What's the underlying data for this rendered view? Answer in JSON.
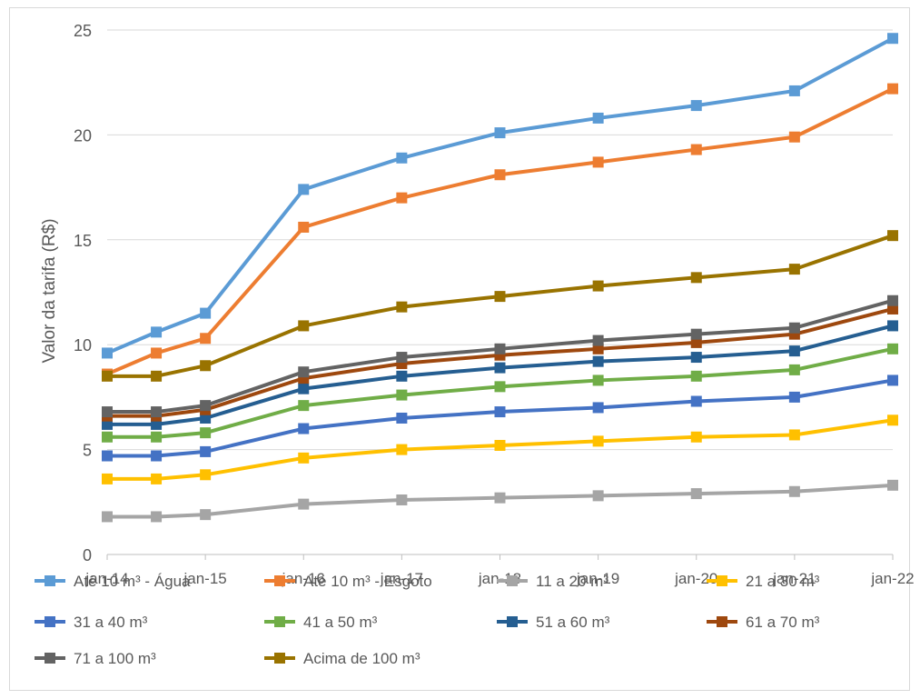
{
  "chart_data": {
    "type": "line",
    "title": "",
    "xlabel": "",
    "ylabel": "Valor da tarifa (R$)",
    "ylim": [
      0,
      25
    ],
    "yticks": [
      0,
      5,
      10,
      15,
      20,
      25
    ],
    "grid": "horizontal",
    "legend_position": "bottom",
    "x_positions": [
      0,
      0.5,
      1,
      2,
      3,
      4,
      5,
      6,
      7,
      8
    ],
    "x_tick_positions": [
      0,
      1,
      2,
      3,
      4,
      5,
      6,
      7,
      8
    ],
    "x_tick_labels": [
      "jan-14",
      "jan-15",
      "jan-16",
      "jan-17",
      "jan-18",
      "jan-19",
      "jan-20",
      "jan-21",
      "jan-22"
    ],
    "series": [
      {
        "name": "Até 10 m³ - Água",
        "color": "#5B9BD5",
        "values": [
          9.6,
          10.6,
          11.5,
          17.4,
          18.9,
          20.1,
          20.8,
          21.4,
          22.1,
          24.6
        ]
      },
      {
        "name": "Até 10 m³ - Esgoto",
        "color": "#ED7D31",
        "values": [
          8.6,
          9.6,
          10.3,
          15.6,
          17.0,
          18.1,
          18.7,
          19.3,
          19.9,
          22.2
        ]
      },
      {
        "name": "11 a 20 m³",
        "color": "#A5A5A5",
        "values": [
          1.8,
          1.8,
          1.9,
          2.4,
          2.6,
          2.7,
          2.8,
          2.9,
          3.0,
          3.3
        ]
      },
      {
        "name": "21 a 30 m³",
        "color": "#FFC000",
        "values": [
          3.6,
          3.6,
          3.8,
          4.6,
          5.0,
          5.2,
          5.4,
          5.6,
          5.7,
          6.4
        ]
      },
      {
        "name": "31 a 40 m³",
        "color": "#4472C4",
        "values": [
          4.7,
          4.7,
          4.9,
          6.0,
          6.5,
          6.8,
          7.0,
          7.3,
          7.5,
          8.3
        ]
      },
      {
        "name": "41 a 50 m³",
        "color": "#70AD47",
        "values": [
          5.6,
          5.6,
          5.8,
          7.1,
          7.6,
          8.0,
          8.3,
          8.5,
          8.8,
          9.8
        ]
      },
      {
        "name": "51 a 60 m³",
        "color": "#255E91",
        "values": [
          6.2,
          6.2,
          6.5,
          7.9,
          8.5,
          8.9,
          9.2,
          9.4,
          9.7,
          10.9
        ]
      },
      {
        "name": "61 a 70 m³",
        "color": "#9E480E",
        "values": [
          6.6,
          6.6,
          6.9,
          8.4,
          9.1,
          9.5,
          9.8,
          10.1,
          10.5,
          11.7
        ]
      },
      {
        "name": "71 a 100 m³",
        "color": "#636363",
        "values": [
          6.8,
          6.8,
          7.1,
          8.7,
          9.4,
          9.8,
          10.2,
          10.5,
          10.8,
          12.1
        ]
      },
      {
        "name": "Acima de 100 m³",
        "color": "#997300",
        "values": [
          8.5,
          8.5,
          9.0,
          10.9,
          11.8,
          12.3,
          12.8,
          13.2,
          13.6,
          15.2
        ]
      }
    ]
  }
}
